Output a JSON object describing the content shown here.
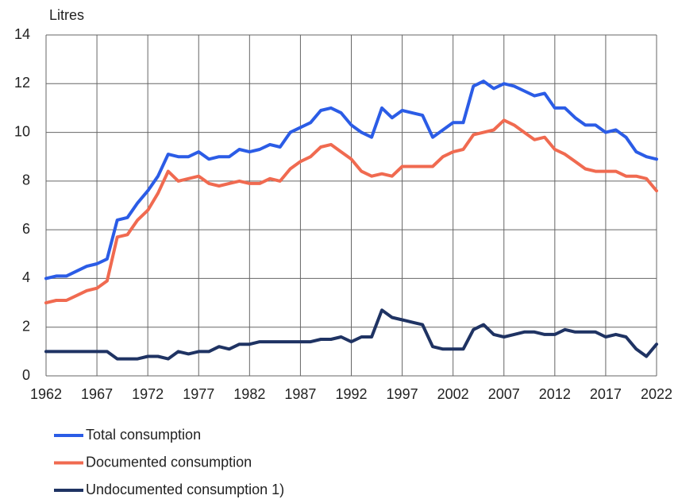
{
  "chart_data": {
    "type": "line",
    "y_axis_label": "Litres",
    "x": [
      1962,
      1963,
      1964,
      1965,
      1966,
      1967,
      1968,
      1969,
      1970,
      1971,
      1972,
      1973,
      1974,
      1975,
      1976,
      1977,
      1978,
      1979,
      1980,
      1981,
      1982,
      1983,
      1984,
      1985,
      1986,
      1987,
      1988,
      1989,
      1990,
      1991,
      1992,
      1993,
      1994,
      1995,
      1996,
      1997,
      1998,
      1999,
      2000,
      2001,
      2002,
      2003,
      2004,
      2005,
      2006,
      2007,
      2008,
      2009,
      2010,
      2011,
      2012,
      2013,
      2014,
      2015,
      2016,
      2017,
      2018,
      2019,
      2020,
      2021,
      2022
    ],
    "series": [
      {
        "name": "Total consumption",
        "color": "#2b5ce6",
        "values": [
          4.0,
          4.1,
          4.1,
          4.3,
          4.5,
          4.6,
          4.8,
          6.4,
          6.5,
          7.1,
          7.6,
          8.2,
          9.1,
          9.0,
          9.0,
          9.2,
          8.9,
          9.0,
          9.0,
          9.3,
          9.2,
          9.3,
          9.5,
          9.4,
          10.0,
          10.2,
          10.4,
          10.9,
          11.0,
          10.8,
          10.3,
          10.0,
          9.8,
          11.0,
          10.6,
          10.9,
          10.8,
          10.7,
          9.8,
          10.1,
          10.4,
          10.4,
          11.9,
          12.1,
          11.8,
          12.0,
          11.9,
          11.7,
          11.5,
          11.6,
          11.0,
          11.0,
          10.6,
          10.3,
          10.3,
          10.0,
          10.1,
          9.8,
          9.2,
          9.0,
          8.9
        ]
      },
      {
        "name": "Documented consumption",
        "color": "#f06a50",
        "values": [
          3.0,
          3.1,
          3.1,
          3.3,
          3.5,
          3.6,
          3.9,
          5.7,
          5.8,
          6.4,
          6.8,
          7.5,
          8.4,
          8.0,
          8.1,
          8.2,
          7.9,
          7.8,
          7.9,
          8.0,
          7.9,
          7.9,
          8.1,
          8.0,
          8.5,
          8.8,
          9.0,
          9.4,
          9.5,
          9.2,
          8.9,
          8.4,
          8.2,
          8.3,
          8.2,
          8.6,
          8.6,
          8.6,
          8.6,
          9.0,
          9.2,
          9.3,
          9.9,
          10.0,
          10.1,
          10.5,
          10.3,
          10.0,
          9.7,
          9.8,
          9.3,
          9.1,
          8.8,
          8.5,
          8.4,
          8.4,
          8.4,
          8.2,
          8.2,
          8.1,
          7.6
        ]
      },
      {
        "name": "Undocumented consumption 1)",
        "color": "#1f3363",
        "values": [
          1.0,
          1.0,
          1.0,
          1.0,
          1.0,
          1.0,
          1.0,
          0.7,
          0.7,
          0.7,
          0.8,
          0.8,
          0.7,
          1.0,
          0.9,
          1.0,
          1.0,
          1.2,
          1.1,
          1.3,
          1.3,
          1.4,
          1.4,
          1.4,
          1.4,
          1.4,
          1.4,
          1.5,
          1.5,
          1.6,
          1.4,
          1.6,
          1.6,
          2.7,
          2.4,
          2.3,
          2.2,
          2.1,
          1.2,
          1.1,
          1.1,
          1.1,
          1.9,
          2.1,
          1.7,
          1.6,
          1.7,
          1.8,
          1.8,
          1.7,
          1.7,
          1.9,
          1.8,
          1.8,
          1.8,
          1.6,
          1.7,
          1.6,
          1.1,
          0.8,
          1.3
        ]
      }
    ],
    "xlim": [
      1962,
      2022
    ],
    "xticks": [
      1962,
      1967,
      1972,
      1977,
      1982,
      1987,
      1992,
      1997,
      2002,
      2007,
      2012,
      2017,
      2022
    ],
    "ylim": [
      0,
      14
    ],
    "yticks": [
      0,
      2,
      4,
      6,
      8,
      10,
      12,
      14
    ],
    "grid": true,
    "legend": "bottom"
  }
}
